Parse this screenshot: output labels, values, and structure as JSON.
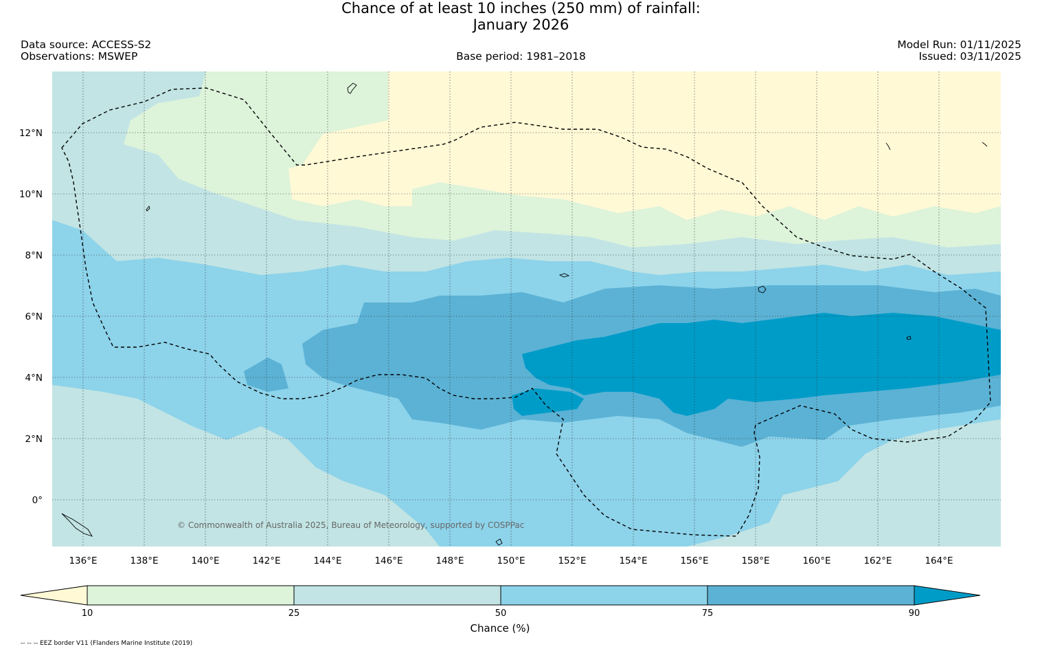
{
  "header": {
    "title_line1": "Chance of at least 10 inches (250  mm) of rainfall:",
    "title_line2": "January 2026",
    "data_source": "Data source: ACCESS-S2",
    "observations": "Observations: MSWEP",
    "base_period": "Base period: 1981–2018",
    "model_run": "Model Run: 01/11/2025",
    "issued": "Issued: 03/11/2025"
  },
  "map": {
    "lon_labels": [
      "136°E",
      "138°E",
      "140°E",
      "142°E",
      "144°E",
      "146°E",
      "148°E",
      "150°E",
      "152°E",
      "154°E",
      "156°E",
      "158°E",
      "160°E",
      "162°E",
      "164°E"
    ],
    "lat_labels": [
      "12°N",
      "10°N",
      "8°N",
      "6°N",
      "4°N",
      "2°N",
      "0°"
    ],
    "copyright": "© Commonwealth of Australia 2025, Bureau of Meteorology, supported by COSPPac",
    "colors": {
      "lt10": "#fff9d6",
      "c10_25": "#ddf3da",
      "c25_50": "#c2e4e4",
      "c50_75": "#8dd3ea",
      "c75_90": "#5bb2d5",
      "gt90": "#009cc8"
    }
  },
  "colorbar": {
    "ticks": [
      "10",
      "25",
      "50",
      "75",
      "90"
    ],
    "label": "Chance (%)"
  },
  "footer": {
    "note": "-- -- -- EEZ border V11 (Flanders Marine Institute (2019)"
  }
}
